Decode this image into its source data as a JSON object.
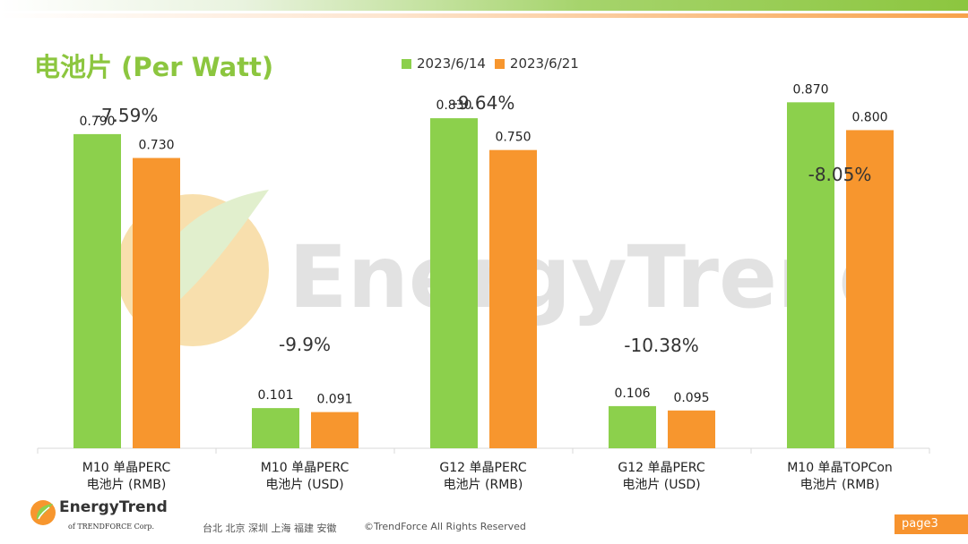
{
  "title": "电池片 (Per Watt)",
  "colors": {
    "series1": "#8cd04c",
    "series2": "#f7962e",
    "title": "#8cc63f",
    "watermark_text": "#d9d9d9",
    "watermark_leaf": "#f3c66b"
  },
  "watermark": "EnergyTrend",
  "chart_data": {
    "type": "bar",
    "title": "电池片 (Per Watt)",
    "categories": [
      [
        "M10 单晶PERC",
        "电池片 (RMB)"
      ],
      [
        "M10 单晶PERC",
        "电池片 (USD)"
      ],
      [
        "G12 单晶PERC",
        "电池片 (RMB)"
      ],
      [
        "G12 单晶PERC",
        "电池片 (USD)"
      ],
      [
        "M10 单晶TOPCon",
        "电池片 (RMB)"
      ]
    ],
    "series": [
      {
        "name": "2023/6/14",
        "values": [
          0.79,
          0.101,
          0.83,
          0.106,
          0.87
        ],
        "labels": [
          "0.790",
          "0.101",
          "0.830",
          "0.106",
          "0.870"
        ]
      },
      {
        "name": "2023/6/21",
        "values": [
          0.73,
          0.091,
          0.75,
          0.095,
          0.8
        ],
        "labels": [
          "0.730",
          "0.091",
          "0.750",
          "0.095",
          "0.800"
        ]
      }
    ],
    "change_labels": [
      "-7.59%",
      "-9.9%",
      "-9.64%",
      "-10.38%",
      "-8.05%"
    ],
    "ylim": [
      0,
      0.9
    ],
    "xlabel": "",
    "ylabel": ""
  },
  "footer": {
    "brand": "EnergyTrend",
    "brand_sub": "of TRENDFORCE Corp.",
    "cities": "台北  北京  深圳  上海  福建  安徽",
    "copyright": "©TrendForce All Rights Reserved",
    "page": "page3"
  }
}
